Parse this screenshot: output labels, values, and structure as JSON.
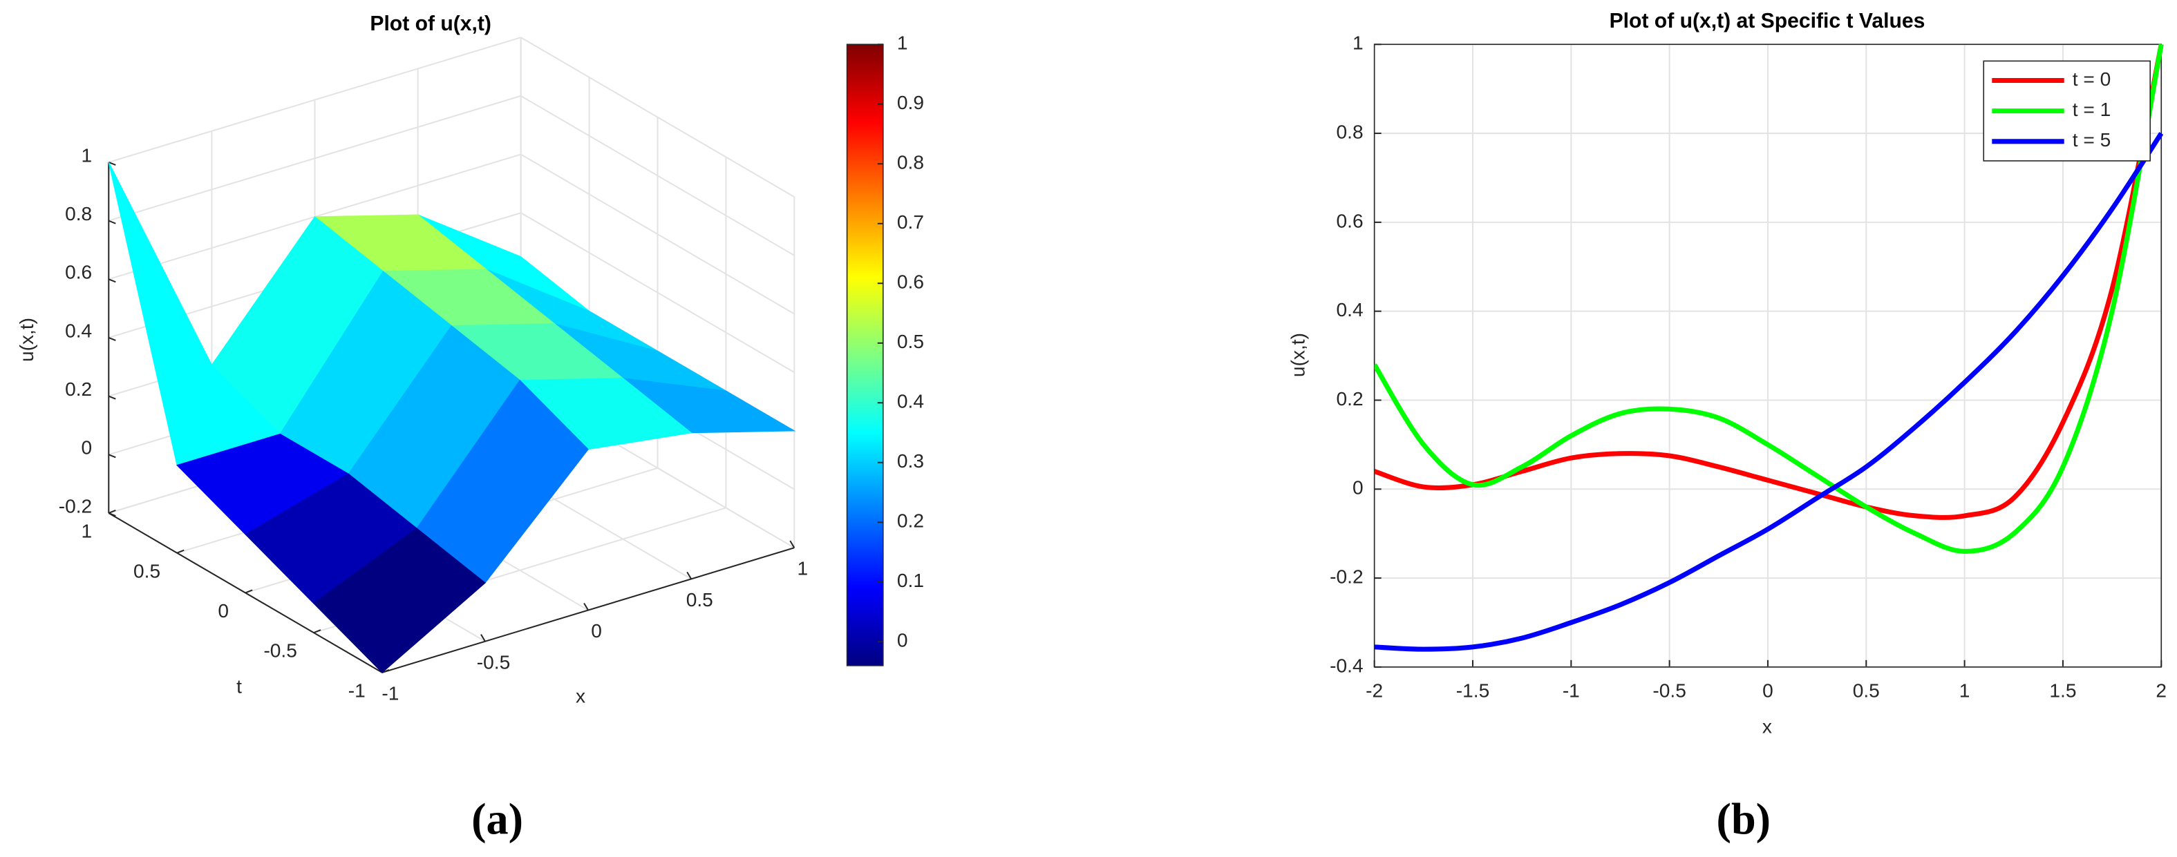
{
  "chart_data": [
    {
      "type": "surface",
      "title": "Plot of u(x,t)",
      "xlabel": "x",
      "ylabel": "t",
      "zlabel": "u(x,t)",
      "caption": "(a)",
      "x": [
        -1,
        -0.5,
        0,
        0.5,
        1
      ],
      "y": [
        -1,
        -0.5,
        0,
        0.5,
        1
      ],
      "z": [
        [
          -0.2,
          0.0,
          0.35,
          0.3,
          0.2
        ],
        [
          -0.1,
          0.05,
          0.45,
          0.35,
          0.2
        ],
        [
          0.0,
          0.1,
          0.5,
          0.4,
          0.2
        ],
        [
          0.1,
          0.1,
          0.55,
          0.45,
          0.2
        ],
        [
          1.0,
          0.2,
          0.6,
          0.5,
          0.25
        ]
      ],
      "xlim": [
        -1,
        1
      ],
      "ylim": [
        -1,
        1
      ],
      "zlim": [
        -0.2,
        1
      ],
      "xticks": [
        -1,
        -0.5,
        0,
        0.5,
        1
      ],
      "yticks": [
        -1,
        -0.5,
        0,
        0.5,
        1
      ],
      "zticks": [
        -0.2,
        0,
        0.2,
        0.4,
        0.6,
        0.8,
        1
      ],
      "colormap": "jet",
      "clim": [
        -0.04,
        1
      ],
      "cticks": [
        0,
        0.1,
        0.2,
        0.3,
        0.4,
        0.5,
        0.6,
        0.7,
        0.8,
        0.9,
        1
      ],
      "grid": true
    },
    {
      "type": "line",
      "title": "Plot of u(x,t) at Specific t Values",
      "xlabel": "x",
      "ylabel": "u(x,t)",
      "caption": "(b)",
      "x": [
        -2,
        -1.75,
        -1.5,
        -1.25,
        -1,
        -0.75,
        -0.5,
        -0.25,
        0,
        0.25,
        0.5,
        0.75,
        1,
        1.25,
        1.5,
        1.75,
        2
      ],
      "series": [
        {
          "name": "t = 0",
          "color": "#ff0000",
          "values": [
            0.04,
            0.005,
            0.01,
            0.04,
            0.07,
            0.08,
            0.075,
            0.05,
            0.02,
            -0.01,
            -0.04,
            -0.06,
            -0.06,
            -0.02,
            0.15,
            0.45,
            1.0
          ]
        },
        {
          "name": "t = 1",
          "color": "#00ff00",
          "values": [
            0.28,
            0.1,
            0.01,
            0.05,
            0.12,
            0.17,
            0.18,
            0.16,
            0.1,
            0.03,
            -0.04,
            -0.1,
            -0.14,
            -0.1,
            0.05,
            0.4,
            1.0
          ]
        },
        {
          "name": "t = 5",
          "color": "#0000ff",
          "values": [
            -0.355,
            -0.36,
            -0.355,
            -0.335,
            -0.3,
            -0.26,
            -0.21,
            -0.15,
            -0.09,
            -0.02,
            0.05,
            0.14,
            0.24,
            0.35,
            0.48,
            0.63,
            0.8
          ]
        }
      ],
      "xlim": [
        -2,
        2
      ],
      "ylim": [
        -0.4,
        1
      ],
      "xticks": [
        -2,
        -1.5,
        -1,
        -0.5,
        0,
        0.5,
        1,
        1.5,
        2
      ],
      "yticks": [
        -0.4,
        -0.2,
        0,
        0.2,
        0.4,
        0.6,
        0.8,
        1
      ],
      "grid": true,
      "legend": "northeast"
    }
  ]
}
